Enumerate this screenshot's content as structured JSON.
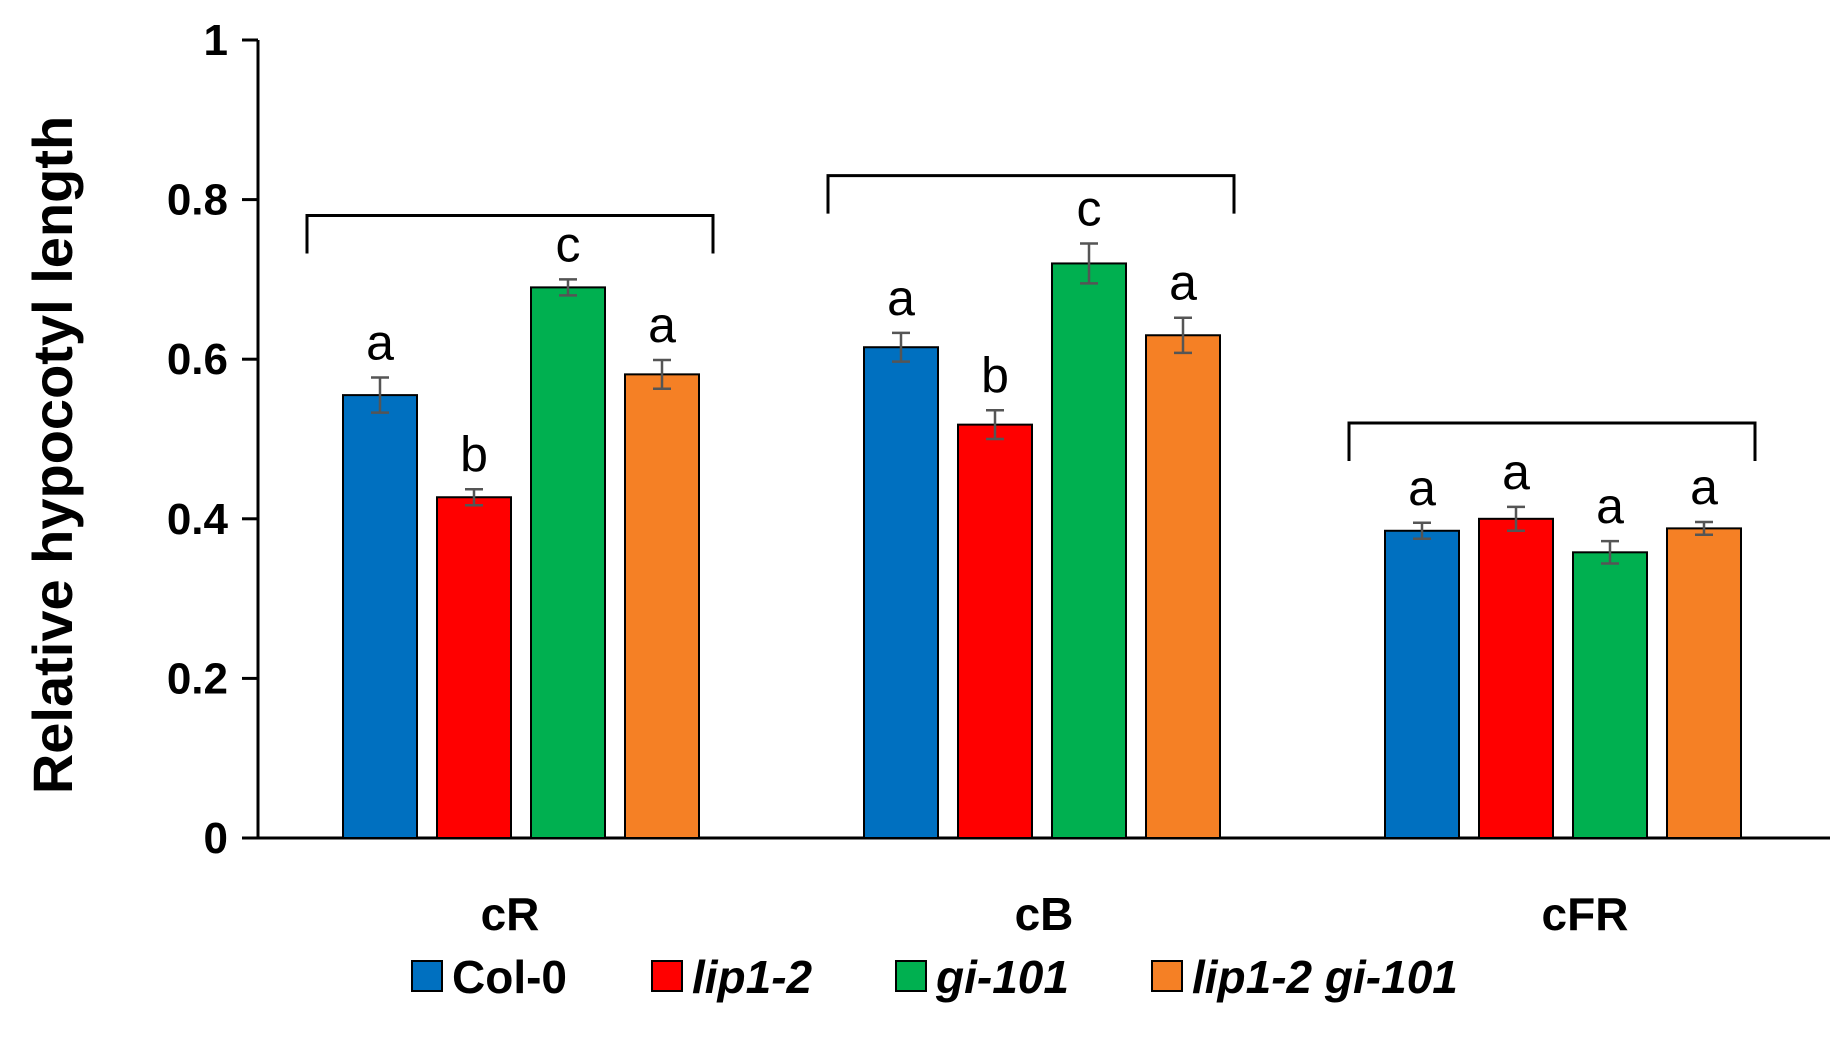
{
  "chart_data": {
    "type": "bar",
    "title": "",
    "xlabel": "",
    "ylabel": "Relative hypocotyl length",
    "ylim": [
      0,
      1
    ],
    "yticks": [
      0,
      0.2,
      0.4,
      0.6,
      0.8,
      1
    ],
    "ytick_labels": [
      "0",
      "0.2",
      "0.4",
      "0.6",
      "0.8",
      "1"
    ],
    "categories": [
      "cR",
      "cB",
      "cFR"
    ],
    "series": [
      {
        "name": "Col-0",
        "italic": false,
        "color": "#0070C0",
        "values": [
          0.555,
          0.615,
          0.385
        ],
        "errors": [
          0.022,
          0.018,
          0.01
        ],
        "significance": [
          "a",
          "a",
          "a"
        ]
      },
      {
        "name": "lip1-2",
        "italic": true,
        "color": "#FF0000",
        "values": [
          0.427,
          0.518,
          0.4
        ],
        "errors": [
          0.01,
          0.018,
          0.015
        ],
        "significance": [
          "b",
          "b",
          "a"
        ]
      },
      {
        "name": "gi-101",
        "italic": true,
        "color": "#00B050",
        "values": [
          0.69,
          0.72,
          0.358
        ],
        "errors": [
          0.01,
          0.025,
          0.014
        ],
        "significance": [
          "c",
          "c",
          "a"
        ]
      },
      {
        "name": "lip1-2 gi-101",
        "italic": true,
        "color": "#F58025",
        "values": [
          0.581,
          0.63,
          0.388
        ],
        "errors": [
          0.018,
          0.022,
          0.008
        ],
        "significance": [
          "a",
          "a",
          "a"
        ]
      }
    ],
    "group_brackets": [
      0.78,
      0.83,
      0.52
    ],
    "legend_position": "bottom",
    "grid": false
  }
}
